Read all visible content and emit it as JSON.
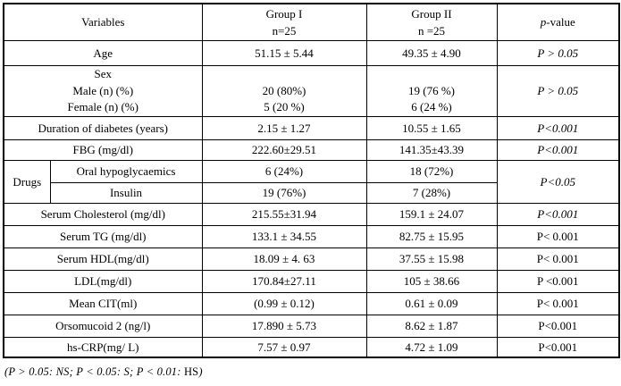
{
  "header": {
    "variables": "Variables",
    "group1": {
      "line1": "Group I",
      "line2": "n=25"
    },
    "group2": {
      "line1": "Group II",
      "line2": "n =25"
    },
    "pvalue": {
      "p": "p",
      "rest": "-value"
    }
  },
  "rows": {
    "age": {
      "label": "Age",
      "g1": "51.15 ± 5.44",
      "g2": "49.35 ± 4.90",
      "p": "P > 0.05"
    },
    "sex": {
      "label": "Sex",
      "male_label": "Male (n) (%)",
      "female_label": "Female (n) (%)",
      "g1_male": "20 (80%)",
      "g1_female": "5 (20 %)",
      "g2_male": "19 (76 %)",
      "g2_female": "6 (24 %)",
      "p": "P > 0.05"
    },
    "duration": {
      "label": "Duration of diabetes (years)",
      "g1": "2.15 ± 1.27",
      "g2": "10.55 ± 1.65",
      "p": "P<0.001"
    },
    "fbg": {
      "label": "FBG (mg/dl)",
      "g1": "222.60±29.51",
      "g2": "141.35±43.39",
      "p": "P<0.001"
    },
    "drugs": {
      "label": "Drugs",
      "oral": {
        "label": "Oral hypoglycaemics",
        "g1": "6 (24%)",
        "g2": "18 (72%)"
      },
      "insulin": {
        "label": "Insulin",
        "g1": "19 (76%)",
        "g2": "7 (28%)"
      },
      "p": "P<0.05"
    },
    "cholesterol": {
      "label": "Serum Cholesterol (mg/dl)",
      "g1": "215.55±31.94",
      "g2": "159.1 ± 24.07",
      "p": "P<0.001"
    },
    "tg": {
      "label": "Serum TG (mg/dl)",
      "g1": "133.1 ± 34.55",
      "g2": "82.75 ± 15.95",
      "p": "P< 0.001"
    },
    "hdl": {
      "label": "Serum HDL(mg/dl)",
      "g1": "18.09 ± 4. 63",
      "g2": "37.55 ± 15.98",
      "p": "P< 0.001"
    },
    "ldl": {
      "label": "LDL(mg/dl)",
      "g1": "170.84±27.11",
      "g2": "105 ± 38.66",
      "p": "P <0.001"
    },
    "cit": {
      "label": "Mean CIT(ml)",
      "g1": "(0.99 ± 0.12)",
      "g2": "0.61 ± 0.09",
      "p": "P< 0.001"
    },
    "orsomucoid": {
      "label": "Orsomucoid 2 (ng/l)",
      "g1": "17.890 ± 5.73",
      "g2": "8.62 ± 1.87",
      "p": "P<0.001"
    },
    "hscrp": {
      "label": "hs-CRP(mg/ L)",
      "g1": "7.57 ± 0.97",
      "g2": "4.72 ± 1.09",
      "p": "P<0.001"
    }
  },
  "footnote": {
    "italic_part": "(P > 0.05: NS; P < 0.05: S; P < 0.01: ",
    "upright_part": "HS",
    "close_paren": ")"
  }
}
